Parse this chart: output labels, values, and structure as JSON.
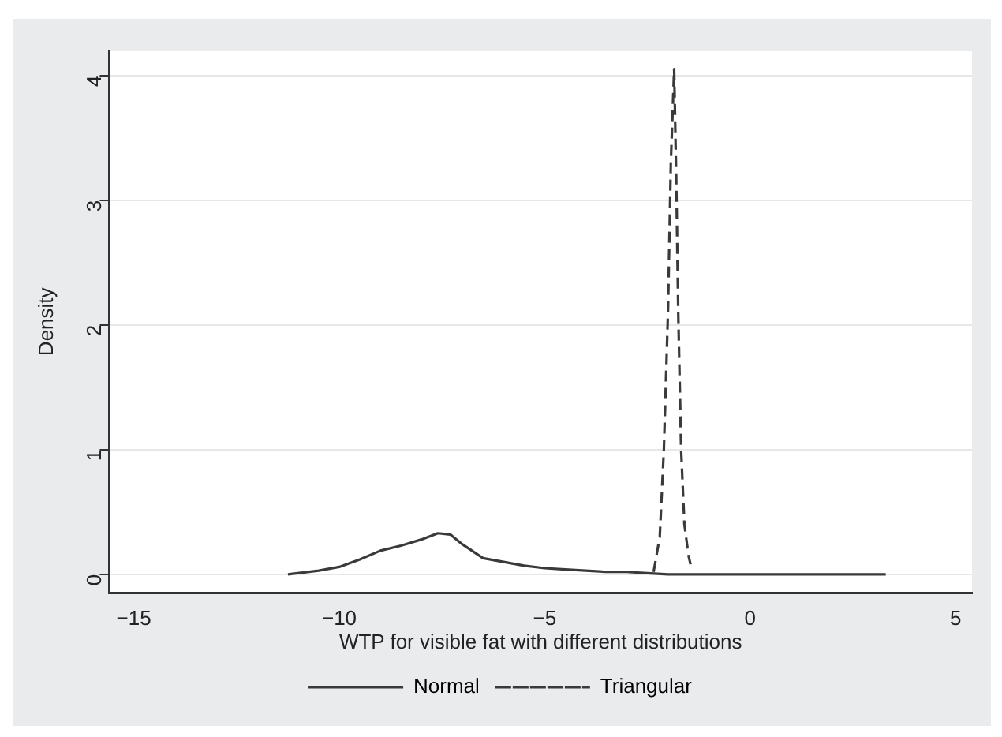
{
  "chart_data": {
    "type": "line",
    "xlabel": "WTP for visible fat with different distributions",
    "ylabel": "Density",
    "xlim": [
      -15.6,
      5.4
    ],
    "xticks": [
      {
        "value": -15,
        "label": "−15"
      },
      {
        "value": -10,
        "label": "−10"
      },
      {
        "value": -5,
        "label": "−5"
      },
      0,
      5
    ],
    "ylim": [
      -0.15,
      4.2
    ],
    "yticks": [
      0,
      1,
      2,
      3,
      4
    ],
    "grid": "y",
    "legend": "bottom",
    "marker": "none",
    "series": [
      {
        "name": "Normal",
        "color": "#3a3a3a",
        "line_style": "solid",
        "x": [
          -11.25,
          -10.5,
          -10,
          -9.5,
          -9,
          -8.5,
          -8,
          -7.6,
          -7.3,
          -7,
          -6.5,
          -6,
          -5.5,
          -5,
          -4.5,
          -4,
          -3.5,
          -3,
          -2.5,
          -2,
          -1,
          0,
          1,
          2,
          3.3
        ],
        "values": [
          0,
          0.03,
          0.06,
          0.12,
          0.19,
          0.23,
          0.28,
          0.33,
          0.32,
          0.24,
          0.13,
          0.1,
          0.07,
          0.05,
          0.04,
          0.03,
          0.02,
          0.02,
          0.01,
          0,
          0,
          0,
          0,
          0,
          0
        ]
      },
      {
        "name": "Triangular",
        "color": "#3a3a3a",
        "line_style": "dashed",
        "x": [
          -2.35,
          -2.2,
          -2.1,
          -2.0,
          -1.93,
          -1.85,
          -1.8,
          -1.75,
          -1.68,
          -1.6,
          -1.5,
          -1.45
        ],
        "values": [
          0.02,
          0.3,
          1.0,
          2.1,
          3.3,
          4.05,
          3.2,
          2.1,
          1.0,
          0.4,
          0.15,
          0.08
        ]
      }
    ]
  }
}
